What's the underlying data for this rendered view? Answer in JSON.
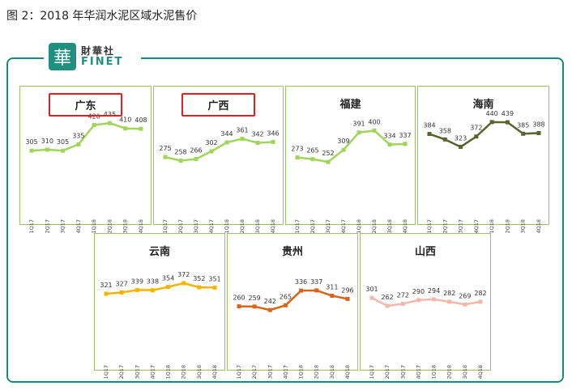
{
  "figure_title": "图 2：2018 年华润水泥区域水泥售价",
  "logo": {
    "mark": "華",
    "cn": "財華社",
    "en": "FINET"
  },
  "chart_data": [
    {
      "type": "line",
      "region": "广东",
      "highlighted": true,
      "color": "#9fd65a",
      "categories": [
        "1Q17",
        "2Q17",
        "3Q17",
        "4Q17",
        "1Q18",
        "2Q18",
        "3Q18",
        "4Q18"
      ],
      "values": [
        305,
        310,
        305,
        335,
        426,
        435,
        410,
        408
      ]
    },
    {
      "type": "line",
      "region": "广西",
      "highlighted": true,
      "color": "#9fd65a",
      "categories": [
        "1Q17",
        "2Q17",
        "3Q17",
        "4Q17",
        "1Q18",
        "2Q18",
        "3Q18",
        "4Q18"
      ],
      "values": [
        275,
        258,
        266,
        302,
        344,
        361,
        342,
        346
      ]
    },
    {
      "type": "line",
      "region": "福建",
      "highlighted": false,
      "color": "#9fd65a",
      "categories": [
        "1Q17",
        "2Q17",
        "3Q17",
        "4Q17",
        "1Q18",
        "2Q18",
        "3Q18",
        "4Q18"
      ],
      "values": [
        273,
        265,
        252,
        309,
        391,
        400,
        334,
        337
      ]
    },
    {
      "type": "line",
      "region": "海南",
      "highlighted": false,
      "color": "#56652e",
      "categories": [
        "1Q17",
        "2Q17",
        "3Q17",
        "4Q17",
        "1Q18",
        "2Q18",
        "3Q18",
        "4Q18"
      ],
      "values": [
        384,
        358,
        323,
        372,
        440,
        439,
        385,
        388
      ]
    },
    {
      "type": "line",
      "region": "云南",
      "highlighted": false,
      "color": "#f5b400",
      "categories": [
        "1Q17",
        "2Q17",
        "3Q17",
        "4Q17",
        "1Q18",
        "2Q18",
        "3Q18",
        "4Q18"
      ],
      "values": [
        321,
        327,
        339,
        338,
        354,
        372,
        352,
        351
      ]
    },
    {
      "type": "line",
      "region": "贵州",
      "highlighted": false,
      "color": "#d8641a",
      "categories": [
        "1Q17",
        "2Q17",
        "3Q17",
        "4Q17",
        "1Q18",
        "2Q18",
        "3Q18",
        "4Q18"
      ],
      "values": [
        260,
        259,
        242,
        265,
        336,
        337,
        311,
        296
      ]
    },
    {
      "type": "line",
      "region": "山西",
      "highlighted": false,
      "color": "#f2b8ac",
      "categories": [
        "1Q17",
        "2Q17",
        "3Q17",
        "4Q17",
        "1Q18",
        "2Q18",
        "3Q18",
        "4Q18"
      ],
      "values": [
        301,
        262,
        272,
        290,
        294,
        282,
        269,
        282
      ]
    }
  ]
}
